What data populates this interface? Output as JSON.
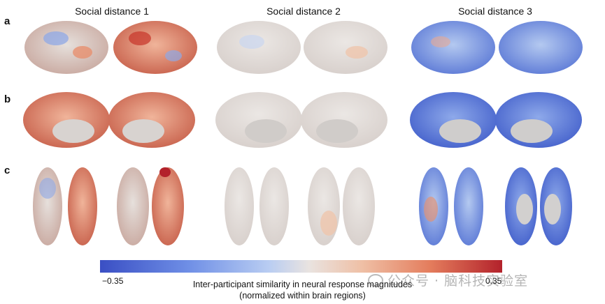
{
  "columns": [
    "Social distance 1",
    "Social distance 2",
    "Social distance 3"
  ],
  "row_labels": [
    "a",
    "b",
    "c"
  ],
  "colorbar": {
    "min_label": "−0.35",
    "max_label": "0.35",
    "label_line1": "Inter-participant similarity in neural response magnitudes",
    "label_line2": "(normalized within brain regions)"
  },
  "watermark": "公众号 · 脑科技实验室",
  "colors": {
    "low": "#3a4fc4",
    "mid": "#e9e3e0",
    "high": "#b3222b"
  }
}
